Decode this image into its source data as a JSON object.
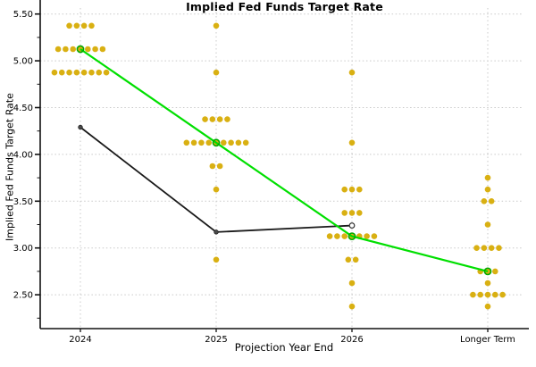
{
  "chart_data": {
    "type": "scatter",
    "title": "Implied Fed Funds Target Rate",
    "x_axis": {
      "label": "Projection Year End",
      "categories": [
        "2024",
        "2025",
        "2026",
        "Longer Term"
      ]
    },
    "y_axis": {
      "label": "Implied Fed Funds Target Rate",
      "ticks": [
        {
          "value": 5.5,
          "label": "5.50"
        },
        {
          "value": 5.0,
          "label": "5.00"
        },
        {
          "value": 4.5,
          "label": "4.50"
        },
        {
          "value": 4.0,
          "label": "4.00"
        },
        {
          "value": 3.5,
          "label": "3.50"
        },
        {
          "value": 3.0,
          "label": "3.00"
        },
        {
          "value": 2.5,
          "label": "2.50"
        }
      ],
      "minor_tick_step": 0.25,
      "range": [
        2.14,
        5.65
      ]
    },
    "grid": {
      "horizontal": true,
      "vertical": true,
      "style": "dotted",
      "color": "#c9c9c9"
    },
    "colors": {
      "dots": "#d9b012",
      "green_line": "#00df00",
      "black_line": "#1a1a1a"
    },
    "dot_clusters": [
      {
        "category": "2024",
        "rows": [
          {
            "rate": 5.375,
            "count": 4
          },
          {
            "rate": 5.125,
            "count": 7
          },
          {
            "rate": 4.875,
            "count": 8
          }
        ]
      },
      {
        "category": "2025",
        "rows": [
          {
            "rate": 5.375,
            "count": 1
          },
          {
            "rate": 4.875,
            "count": 1
          },
          {
            "rate": 4.375,
            "count": 4
          },
          {
            "rate": 4.125,
            "count": 9
          },
          {
            "rate": 3.875,
            "count": 2
          },
          {
            "rate": 3.625,
            "count": 1
          },
          {
            "rate": 2.875,
            "count": 1
          }
        ]
      },
      {
        "category": "2026",
        "rows": [
          {
            "rate": 4.875,
            "count": 1
          },
          {
            "rate": 4.125,
            "count": 1
          },
          {
            "rate": 3.625,
            "count": 3
          },
          {
            "rate": 3.375,
            "count": 3
          },
          {
            "rate": 3.125,
            "count": 7
          },
          {
            "rate": 2.875,
            "count": 2
          },
          {
            "rate": 2.625,
            "count": 1
          },
          {
            "rate": 2.375,
            "count": 1
          }
        ]
      },
      {
        "category": "Longer Term",
        "rows": [
          {
            "rate": 3.75,
            "count": 1
          },
          {
            "rate": 3.625,
            "count": 1
          },
          {
            "rate": 3.5,
            "count": 2
          },
          {
            "rate": 3.25,
            "count": 1
          },
          {
            "rate": 3.0,
            "count": 4
          },
          {
            "rate": 2.75,
            "count": 3
          },
          {
            "rate": 2.625,
            "count": 1
          },
          {
            "rate": 2.5,
            "count": 5
          },
          {
            "rate": 2.375,
            "count": 1
          }
        ]
      }
    ],
    "series": [
      {
        "name": "black_line",
        "color": "#1a1a1a",
        "categories": [
          "2024",
          "2025",
          "2026"
        ],
        "values": [
          4.29,
          3.17,
          3.24
        ],
        "marker": "circle",
        "last_marker": "open-circle"
      },
      {
        "name": "green_line",
        "color": "#00df00",
        "categories": [
          "2024",
          "2025",
          "2026",
          "Longer Term"
        ],
        "values": [
          5.125,
          4.125,
          3.125,
          2.75
        ],
        "marker": "open-circle"
      }
    ]
  }
}
